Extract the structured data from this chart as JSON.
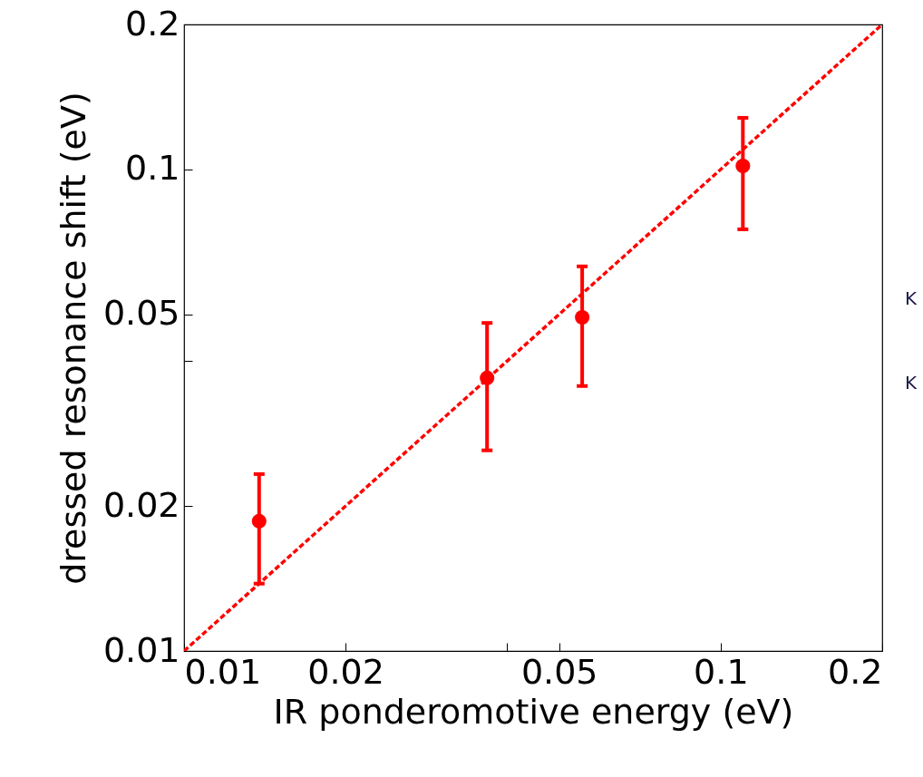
{
  "chart_data": {
    "type": "scatter",
    "xlabel": "IR ponderomotive energy (eV)",
    "ylabel": "dressed resonance shift (eV)",
    "log": "xy",
    "xlim": [
      0.01,
      0.2
    ],
    "ylim": [
      0.01,
      0.2
    ],
    "xticks": [
      0.01,
      0.02,
      {
        "value": 0.04,
        "label": null
      },
      0.05,
      0.1,
      0.2
    ],
    "yticks": [
      0.01,
      0.02,
      {
        "value": 0.04,
        "label": null
      },
      0.05,
      0.1,
      0.2
    ],
    "grid": false,
    "series": [
      {
        "color": "#ff0000",
        "marker": "circle",
        "x": [
          0.0138,
          0.0367,
          0.0552,
          0.11
        ],
        "values": [
          0.0186,
          0.0369,
          0.0493,
          0.1017
        ],
        "errors": [
          [
            0.0138,
            0.0233
          ],
          [
            0.0261,
            0.048
          ],
          [
            0.0355,
            0.0629
          ],
          [
            0.0751,
            0.128
          ]
        ]
      },
      {
        "type": "line",
        "color": "#ff0000",
        "line_style": "dashed",
        "marker": "none",
        "x": [
          0.01,
          0.2
        ],
        "values": [
          0.01,
          0.2
        ]
      }
    ],
    "annotations": [
      "K",
      "K"
    ]
  }
}
